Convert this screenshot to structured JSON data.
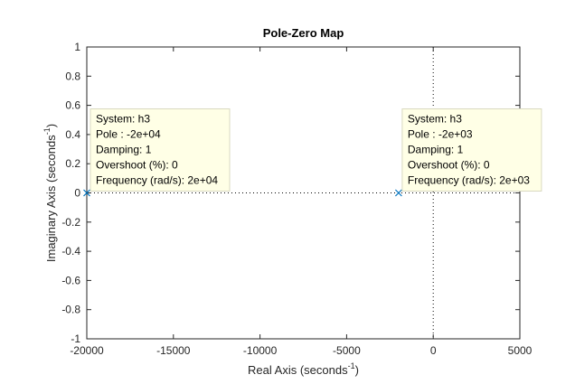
{
  "chart_data": {
    "type": "scatter",
    "title": "Pole-Zero Map",
    "xlabel": {
      "text": "Real Axis (seconds",
      "sup": "-1",
      "close": ")"
    },
    "ylabel": {
      "text": "Imaginary Axis (seconds",
      "sup": "-1",
      "close": ")"
    },
    "xlim": [
      -20000,
      5000
    ],
    "ylim": [
      -1,
      1
    ],
    "xticks": [
      -20000,
      -15000,
      -10000,
      -5000,
      0,
      5000
    ],
    "xtick_labels": [
      "-20000",
      "-15000",
      "-10000",
      "-5000",
      "0",
      "5000"
    ],
    "yticks": [
      -1,
      -0.8,
      -0.6,
      -0.4,
      -0.2,
      0,
      0.2,
      0.4,
      0.6,
      0.8,
      1
    ],
    "ytick_labels": [
      "-1",
      "-0.8",
      "-0.6",
      "-0.4",
      "-0.2",
      "0",
      "0.2",
      "0.4",
      "0.6",
      "0.8",
      "1"
    ],
    "grid": false,
    "marker": "x",
    "marker_color": "#0072BD",
    "reference_lines": {
      "x": 0,
      "y": 0,
      "style": "dotted",
      "color": "#000000"
    },
    "series": [
      {
        "points": [
          {
            "x": -20000,
            "y": 0
          },
          {
            "x": -2000,
            "y": 0
          }
        ]
      }
    ],
    "datatips": [
      {
        "anchor_x": -20000,
        "anchor_y": 0,
        "lines": [
          "System: h3",
          "Pole : -2e+04",
          "Damping: 1",
          "Overshoot (%): 0",
          "Frequency (rad/s): 2e+04"
        ]
      },
      {
        "anchor_x": -2000,
        "anchor_y": 0,
        "lines": [
          "System: h3",
          "Pole : -2e+03",
          "Damping: 1",
          "Overshoot (%): 0",
          "Frequency (rad/s): 2e+03"
        ]
      }
    ],
    "colors": {
      "axis": "#262626",
      "datatip_fill": "#FFFFE6",
      "datatip_border": "#D9D9C0"
    }
  }
}
